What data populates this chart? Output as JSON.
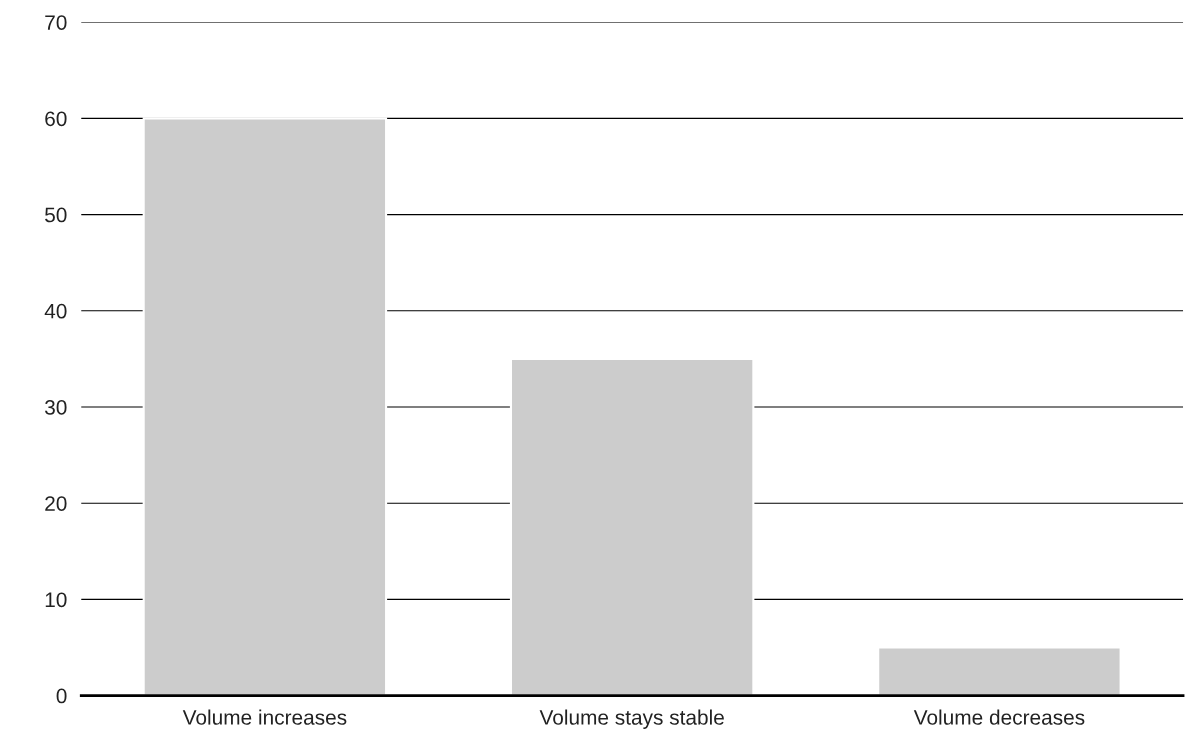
{
  "chart_data": {
    "type": "bar",
    "categories": [
      "Volume increases",
      "Volume stays stable",
      "Volume decreases"
    ],
    "values": [
      60,
      35,
      5
    ],
    "color": "#cccccc",
    "ylim": [
      0,
      70
    ],
    "yticks": [
      0,
      10,
      20,
      30,
      40,
      50,
      60,
      70
    ],
    "grid": "y",
    "legend": false
  }
}
